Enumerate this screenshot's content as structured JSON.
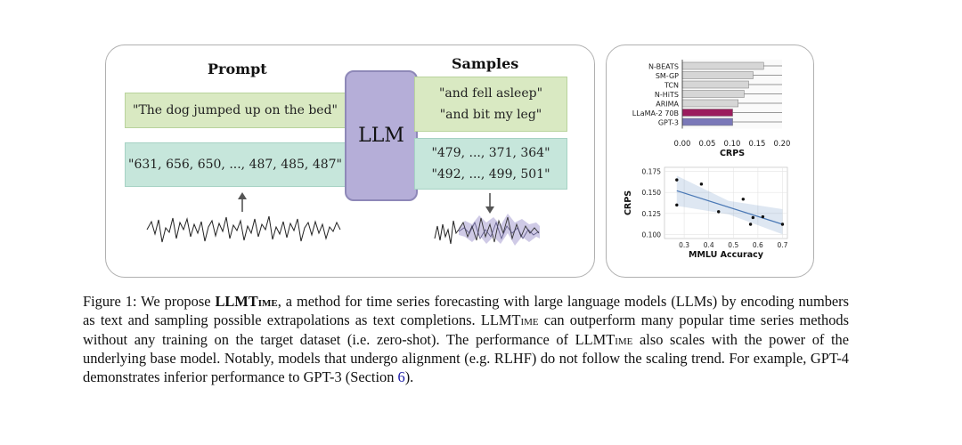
{
  "diagram": {
    "prompt_header": "Prompt",
    "samples_header": "Samples",
    "prompt_text": "\"The dog jumped up on the bed\"",
    "prompt_numbers": "\"631, 656, 650, ..., 487, 485, 487\"",
    "llm_label": "LLM",
    "sample_text_1": "\"and fell asleep\"",
    "sample_text_2": "\"and bit my leg\"",
    "sample_numbers_1": "\"479, ..., 371, 364\"",
    "sample_numbers_2": "\"492, ..., 499, 501\""
  },
  "colors": {
    "green_box": "#d9e9c2",
    "teal_box": "#c6e6db",
    "llm_box": "#b5aed8",
    "llama_bar": "#9b1d5d",
    "gpt3_bar": "#7a78b8",
    "baseline_bar": "#d6d6d6",
    "regression_line": "#4a78b5"
  },
  "chart_data": [
    {
      "type": "bar",
      "orientation": "horizontal",
      "categories": [
        "N-BEATS",
        "SM-GP",
        "TCN",
        "N-HiTS",
        "ARIMA",
        "LLaMA-2 70B",
        "GPT-3"
      ],
      "values": [
        0.163,
        0.142,
        0.133,
        0.124,
        0.112,
        0.101,
        0.101
      ],
      "xlabel": "CRPS",
      "xlim": [
        0,
        0.2
      ],
      "xticks": [
        "0.00",
        "0.05",
        "0.10",
        "0.15",
        "0.20"
      ]
    },
    {
      "type": "scatter",
      "x": [
        0.27,
        0.27,
        0.37,
        0.44,
        0.54,
        0.57,
        0.58,
        0.62,
        0.7
      ],
      "y": [
        0.165,
        0.135,
        0.16,
        0.127,
        0.142,
        0.112,
        0.12,
        0.121,
        0.112
      ],
      "trend": {
        "x": [
          0.27,
          0.7
        ],
        "y": [
          0.152,
          0.112
        ]
      },
      "xlabel": "MMLU Accuracy",
      "ylabel": "CRPS",
      "xlim": [
        0.22,
        0.72
      ],
      "ylim": [
        0.095,
        0.18
      ],
      "xticks": [
        "0.3",
        "0.4",
        "0.5",
        "0.6",
        "0.7"
      ],
      "yticks": [
        "0.100",
        "0.125",
        "0.150",
        "0.175"
      ]
    }
  ],
  "caption": {
    "label": "Figure 1:",
    "t1": " We propose ",
    "name": "LLMTime",
    "t2": ", a method for time series forecasting with large language models (LLMs) by encoding numbers as text and sampling possible extrapolations as text completions. ",
    "t3": " can outperform many popular time series methods without any training on the target dataset (i.e. zero-shot). The performance of ",
    "t4": " also scales with the power of the underlying base model. Notably, models that undergo alignment (e.g. RLHF) do not follow the scaling trend. For example, GPT-4 demonstrates inferior performance to GPT-3 (Section ",
    "section_ref": "6",
    "t5": ")."
  }
}
